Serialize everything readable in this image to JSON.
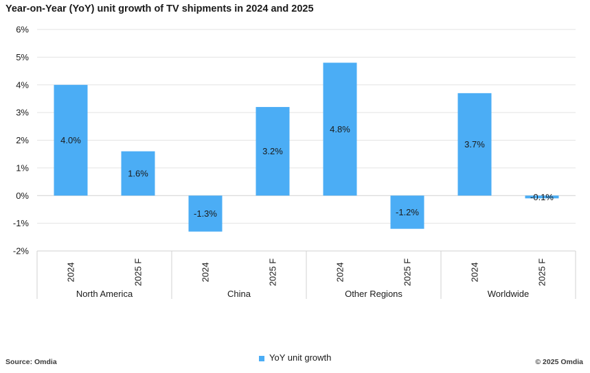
{
  "chart_data": {
    "type": "bar",
    "title": "Year-on-Year (YoY) unit growth of TV shipments in 2024 and 2025",
    "ylim": [
      -2,
      6
    ],
    "yticks": [
      -2,
      -1,
      0,
      1,
      2,
      3,
      4,
      5,
      6
    ],
    "ytick_labels": [
      "-2%",
      "-1%",
      "0%",
      "1%",
      "2%",
      "3%",
      "4%",
      "5%",
      "6%"
    ],
    "grid": true,
    "groups": [
      {
        "name": "North America",
        "categories": [
          "2024",
          "2025 F"
        ],
        "values": [
          4.0,
          1.6
        ],
        "labels": [
          "4.0%",
          "1.6%"
        ]
      },
      {
        "name": "China",
        "categories": [
          "2024",
          "2025 F"
        ],
        "values": [
          -1.3,
          3.2
        ],
        "labels": [
          "-1.3%",
          "3.2%"
        ]
      },
      {
        "name": "Other Regions",
        "categories": [
          "2024",
          "2025 F"
        ],
        "values": [
          4.8,
          -1.2
        ],
        "labels": [
          "4.8%",
          "-1.2%"
        ]
      },
      {
        "name": "Worldwide",
        "categories": [
          "2024",
          "2025 F"
        ],
        "values": [
          3.7,
          -0.1
        ],
        "labels": [
          "3.7%",
          "-0.1%"
        ]
      }
    ],
    "series": [
      {
        "name": "YoY unit growth",
        "color": "#4badf5"
      }
    ],
    "legend_position": "bottom"
  },
  "footer": {
    "source": "Source: Omdia",
    "copyright": "© 2025 Omdia"
  }
}
